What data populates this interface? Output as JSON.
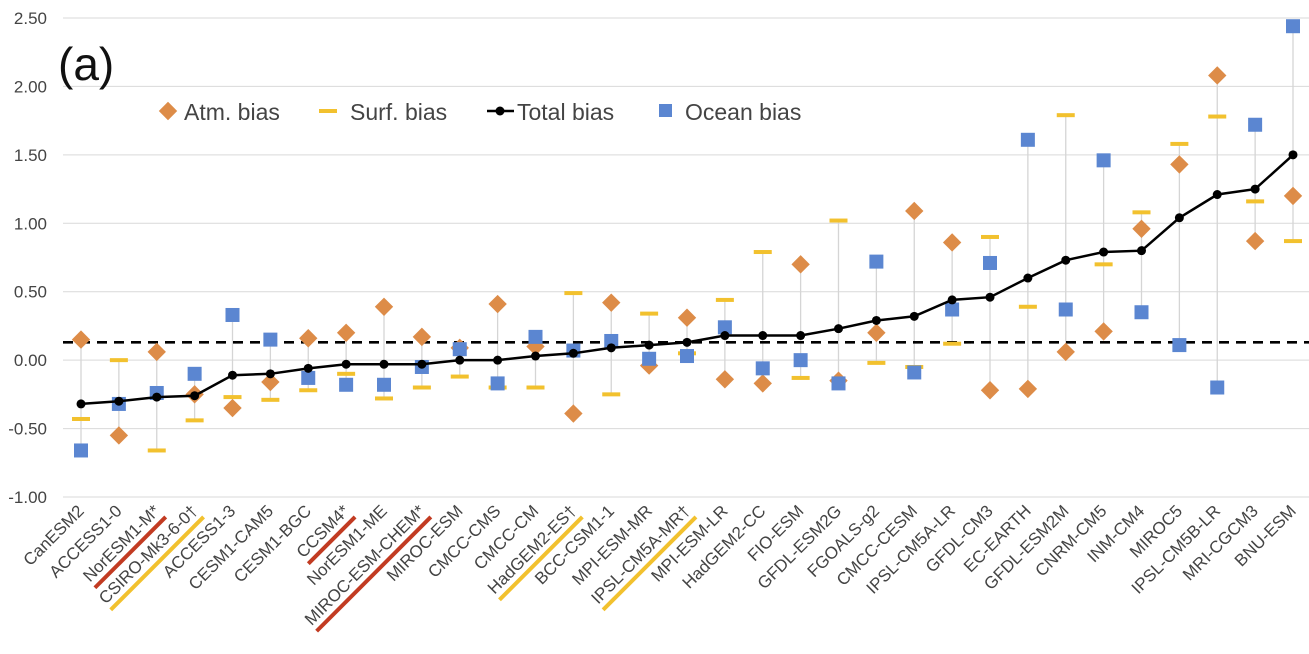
{
  "panel_label": "(a)",
  "legend": {
    "atm": "Atm. bias",
    "surf": "Surf. bias",
    "total": "Total bias",
    "ocean": "Ocean bias"
  },
  "colors": {
    "atm": "#dd8c48",
    "surf": "#f2c12e",
    "total": "#000000",
    "ocean": "#5b86d1",
    "grid": "#d9d9d9",
    "whisker": "#d5d5d5",
    "underline_red": "#c23b22",
    "underline_yellow": "#f2c12e"
  },
  "chart_data": {
    "type": "line",
    "ylim": [
      -1.0,
      2.5
    ],
    "yticks": [
      "-1.00",
      "-0.50",
      "0.00",
      "0.50",
      "1.00",
      "1.50",
      "2.00",
      "2.50"
    ],
    "reference_line": 0.13,
    "grid": true,
    "legend_position": "top-left",
    "categories": [
      "CanESM2",
      "ACCESS1-0",
      "NorESM1-M*",
      "CSIRO-Mk3-6-0†",
      "ACCESS1-3",
      "CESM1-CAM5",
      "CESM1-BGC",
      "CCSM4*",
      "NorESM1-ME",
      "MIROC-ESM-CHEM*",
      "MIROC-ESM",
      "CMCC-CMS",
      "CMCC-CM",
      "HadGEM2-ES†",
      "BCC-CSM1-1",
      "MPI-ESM-MR",
      "IPSL-CM5A-MR†",
      "MPI-ESM-LR",
      "HadGEM2-CC",
      "FIO-ESM",
      "GFDL-ESM2G",
      "FGOALS-g2",
      "CMCC-CESM",
      "IPSL-CM5A-LR",
      "GFDL-CM3",
      "EC-EARTH",
      "GFDL-ESM2M",
      "CNRM-CM5",
      "INM-CM4",
      "MIROC5",
      "IPSL-CM5B-LR",
      "MRI-CGCM3",
      "BNU-ESM"
    ],
    "underline": [
      "",
      "",
      "red",
      "yellow",
      "",
      "",
      "",
      "red",
      "",
      "red",
      "",
      "",
      "",
      "yellow",
      "",
      "",
      "yellow",
      "",
      "",
      "",
      "",
      "",
      "",
      "",
      "",
      "",
      "",
      "",
      "",
      "",
      "",
      "",
      ""
    ],
    "series": [
      {
        "name": "Atm. bias",
        "marker": "diamond",
        "values": [
          0.15,
          -0.55,
          0.06,
          -0.25,
          -0.35,
          -0.16,
          0.16,
          0.2,
          0.39,
          0.17,
          0.09,
          0.41,
          0.1,
          -0.39,
          0.42,
          -0.04,
          0.31,
          -0.14,
          -0.17,
          0.7,
          -0.15,
          0.2,
          1.09,
          0.86,
          -0.22,
          -0.21,
          0.06,
          0.21,
          0.96,
          1.43,
          2.08,
          0.87,
          1.2
        ]
      },
      {
        "name": "Surf. bias",
        "marker": "dash",
        "values": [
          -0.43,
          0.0,
          -0.66,
          -0.44,
          -0.27,
          -0.29,
          -0.22,
          -0.1,
          -0.28,
          -0.2,
          -0.12,
          -0.2,
          -0.2,
          0.49,
          -0.25,
          0.34,
          0.05,
          0.44,
          0.79,
          -0.13,
          1.02,
          -0.02,
          -0.05,
          0.12,
          0.9,
          0.39,
          1.79,
          0.7,
          1.08,
          1.58,
          1.78,
          1.16,
          0.87
        ]
      },
      {
        "name": "Total bias",
        "marker": "line",
        "values": [
          -0.32,
          -0.3,
          -0.27,
          -0.26,
          -0.11,
          -0.1,
          -0.06,
          -0.03,
          -0.03,
          -0.03,
          0.0,
          0.0,
          0.03,
          0.05,
          0.09,
          0.11,
          0.13,
          0.18,
          0.18,
          0.18,
          0.23,
          0.29,
          0.32,
          0.44,
          0.46,
          0.6,
          0.73,
          0.79,
          0.8,
          1.04,
          1.21,
          1.25,
          1.5
        ]
      },
      {
        "name": "Ocean bias",
        "marker": "square",
        "values": [
          -0.66,
          -0.32,
          -0.24,
          -0.1,
          0.33,
          0.15,
          -0.13,
          -0.18,
          -0.18,
          -0.05,
          0.08,
          -0.17,
          0.17,
          0.07,
          0.14,
          0.01,
          0.03,
          0.24,
          -0.06,
          0.0,
          -0.17,
          0.72,
          -0.09,
          0.37,
          0.71,
          1.61,
          0.37,
          1.46,
          0.35,
          0.11,
          -0.2,
          1.72,
          2.44
        ]
      }
    ]
  }
}
